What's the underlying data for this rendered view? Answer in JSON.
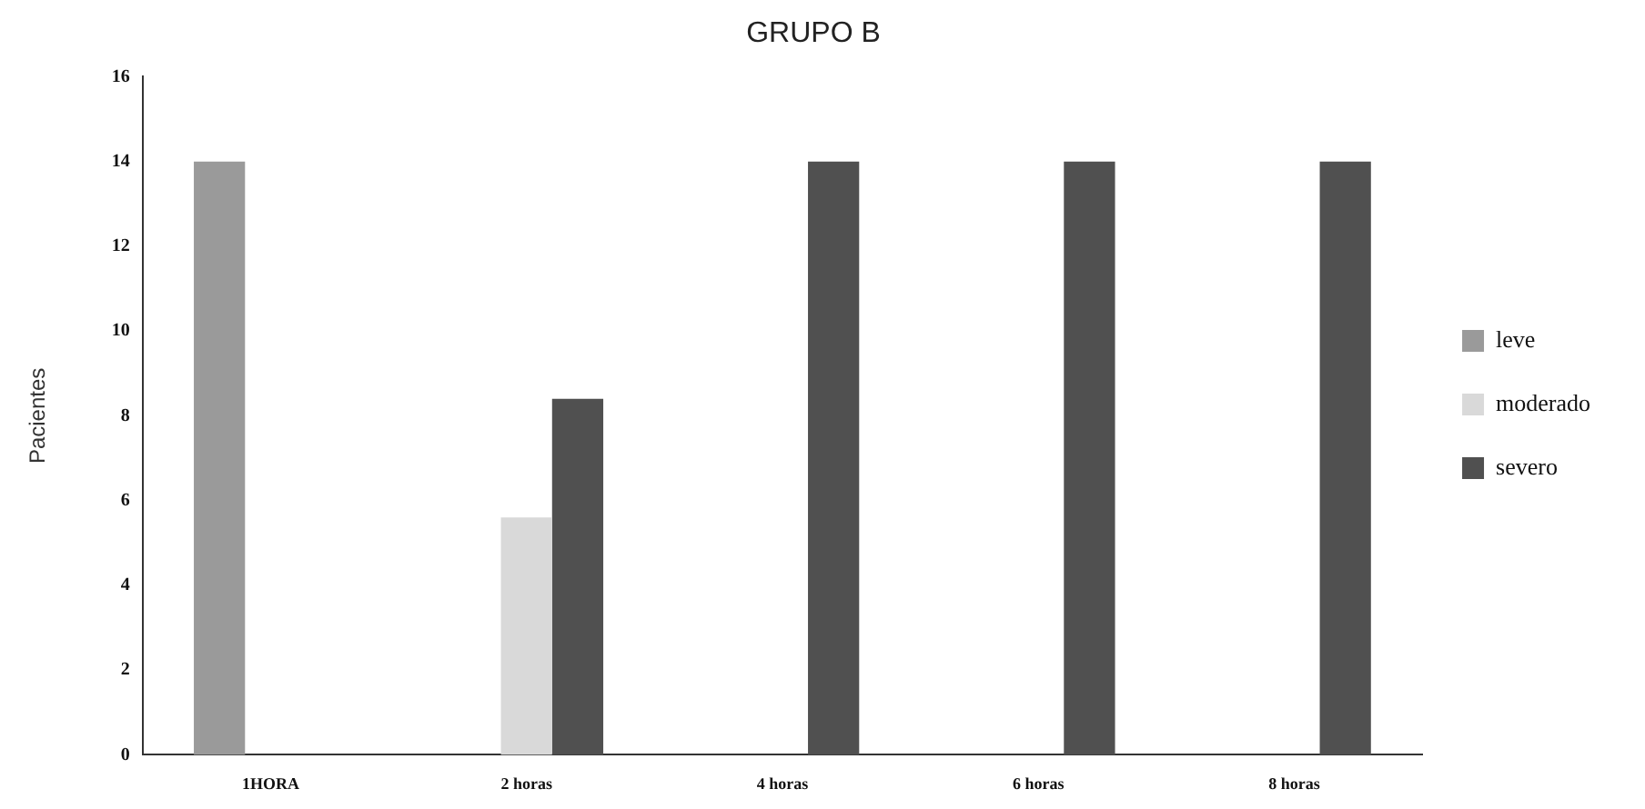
{
  "chart_data": {
    "type": "bar",
    "title": "GRUPO B",
    "ylabel": "Pacientes",
    "categories": [
      "1HORA",
      "2 horas",
      "4 horas",
      "6 horas",
      "8 horas"
    ],
    "series": [
      {
        "name": "leve",
        "color": "#9a9a9a",
        "values": [
          14,
          0,
          0,
          0,
          0
        ]
      },
      {
        "name": "moderado",
        "color": "#d9d9d9",
        "values": [
          0,
          5.6,
          0,
          0,
          0
        ]
      },
      {
        "name": "severo",
        "color": "#505050",
        "values": [
          0,
          8.4,
          14,
          14,
          14
        ]
      }
    ],
    "ylim": [
      0,
      16
    ],
    "yticks": [
      0,
      2,
      4,
      6,
      8,
      10,
      12,
      14,
      16
    ],
    "grid": false,
    "legend": "right"
  }
}
